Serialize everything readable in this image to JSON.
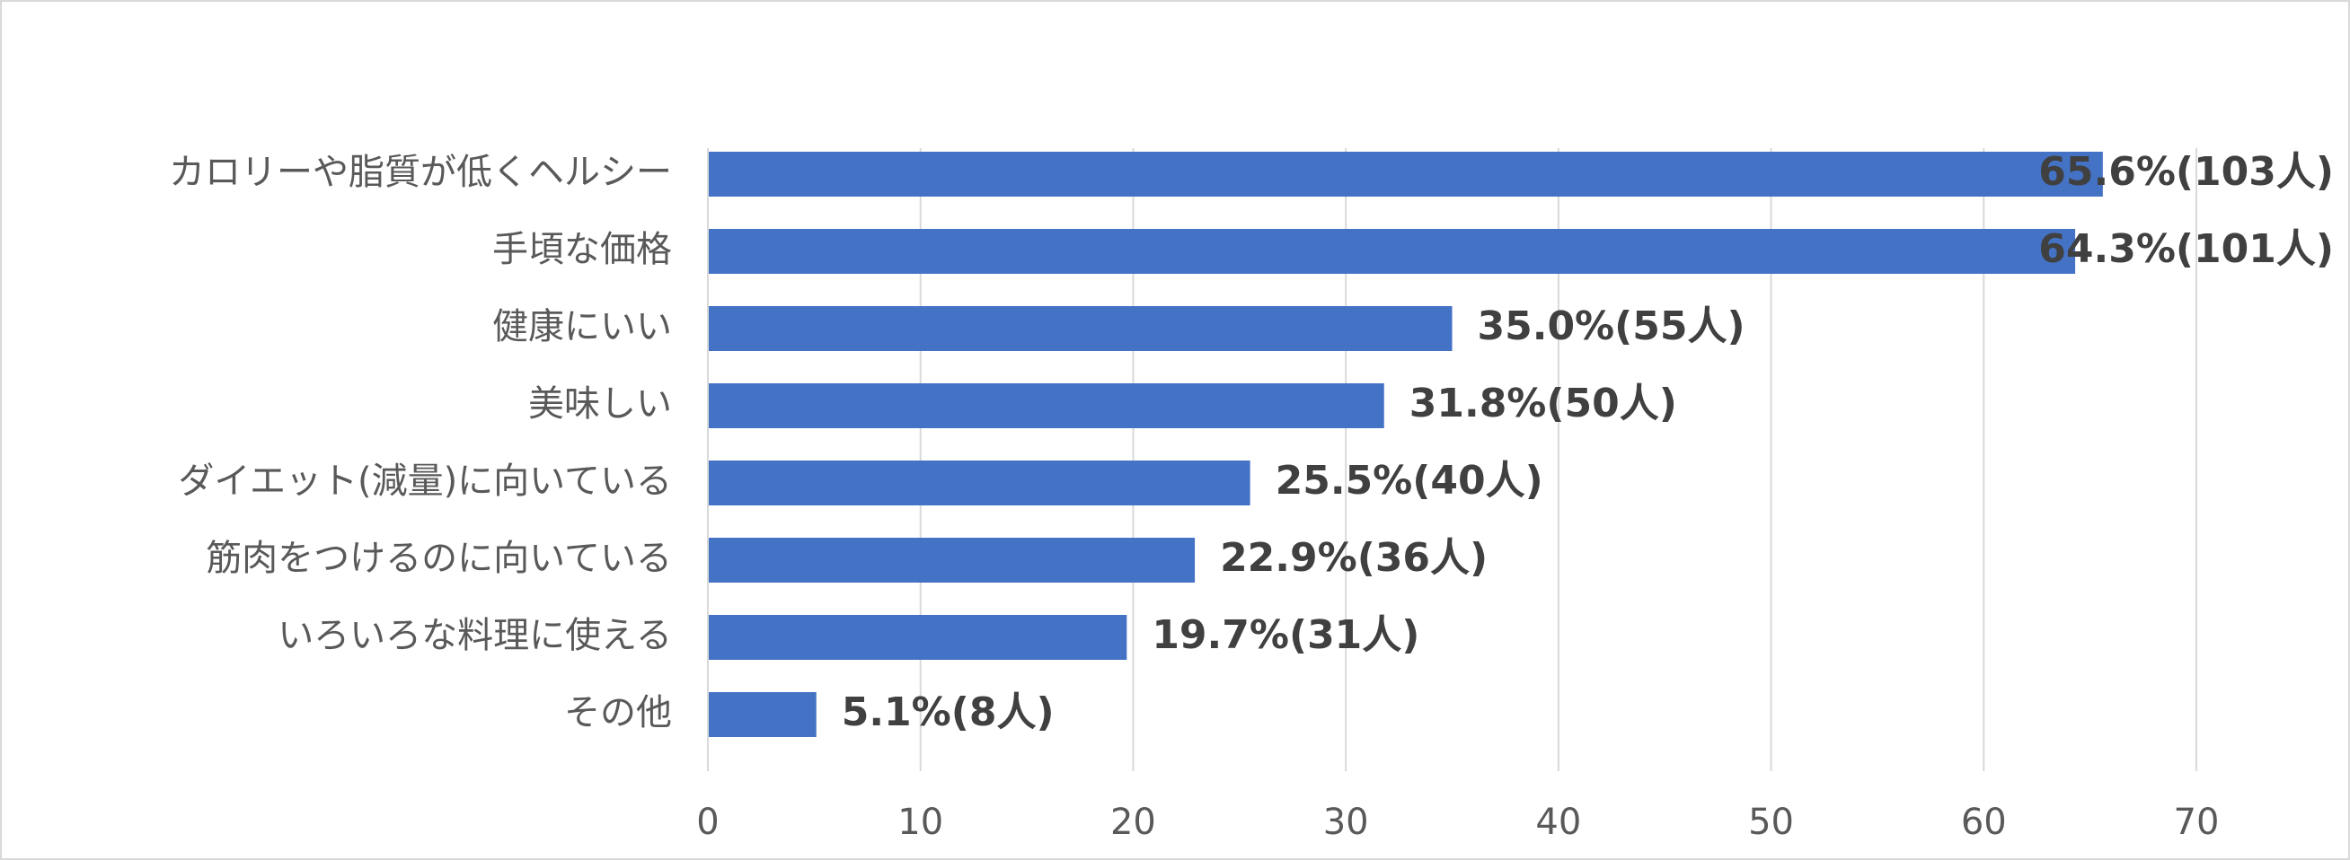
{
  "chart_data": {
    "type": "bar",
    "orientation": "horizontal",
    "title": "",
    "xlabel": "",
    "ylabel": "",
    "xlim": [
      0,
      70
    ],
    "ticks": [
      0,
      10,
      20,
      30,
      40,
      50,
      60,
      70
    ],
    "grid": true,
    "bar_color": "#4472C4",
    "categories": [
      "カロリーや脂質が低くヘルシー",
      "手頃な価格",
      "健康にいい",
      "美味しい",
      "ダイエット(減量)に向いている",
      "筋肉をつけるのに向いている",
      "いろいろな料理に使える",
      "その他"
    ],
    "values": [
      65.6,
      64.3,
      35.0,
      31.8,
      25.5,
      22.9,
      19.7,
      5.1
    ],
    "data_labels": [
      "65.6%(103人)",
      "64.3%(101人)",
      "35.0%(55人)",
      "31.8%(50人)",
      "25.5%(40人)",
      "22.9%(36人)",
      "19.7%(31人)",
      "5.1%(8人)"
    ]
  }
}
